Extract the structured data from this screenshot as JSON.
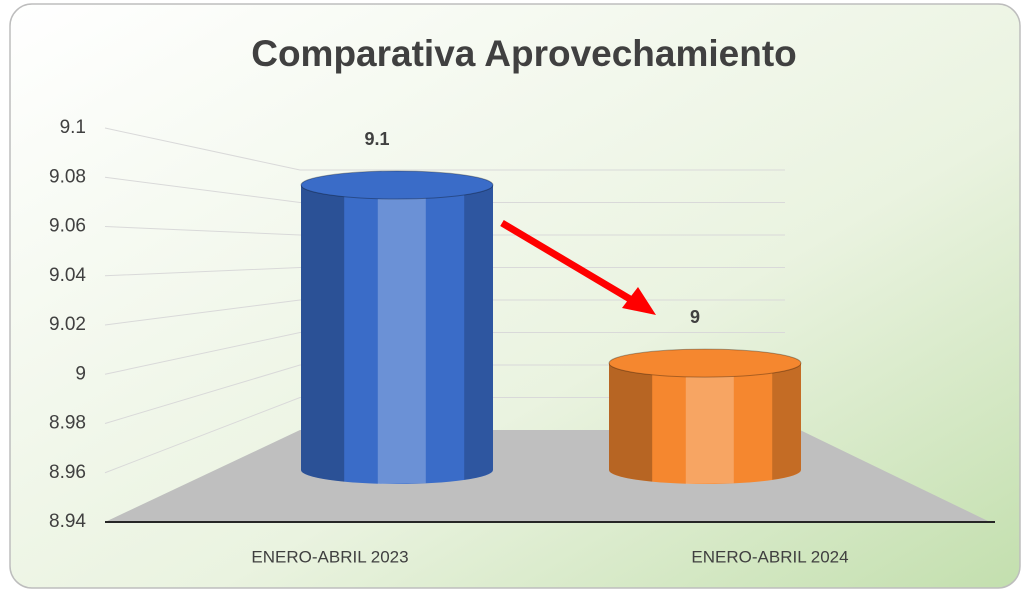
{
  "chart_data": {
    "type": "bar",
    "title": "Comparativa Aprovechamiento",
    "categories": [
      "ENERO-ABRIL 2023",
      "ENERO-ABRIL 2024"
    ],
    "values": [
      9.1,
      9
    ],
    "colors": [
      "#3a6cc8",
      "#f5872f"
    ],
    "ylim": [
      8.94,
      9.1
    ],
    "yticks": [
      8.94,
      8.96,
      8.98,
      9,
      9.02,
      9.04,
      9.06,
      9.08,
      9.1
    ],
    "grid": true
  }
}
